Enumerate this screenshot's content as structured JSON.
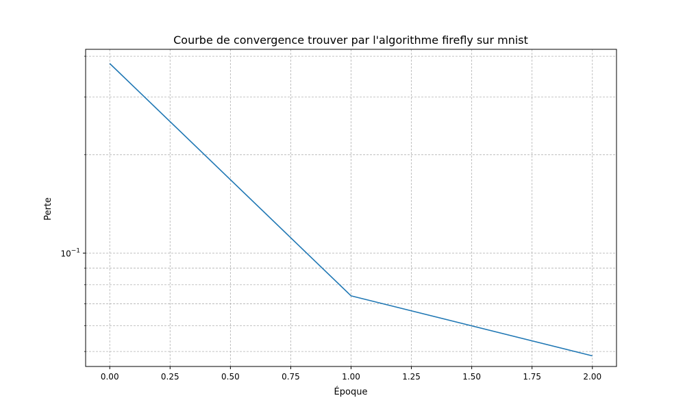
{
  "chart_data": {
    "type": "line",
    "title": "Courbe de convergence trouver par l'algorithme firefly sur mnist",
    "xlabel": "Époque",
    "ylabel": "Perte",
    "x": [
      0,
      1,
      2
    ],
    "series": [
      {
        "values": [
          0.38,
          0.074,
          0.0485
        ],
        "color": "#1f77b4"
      }
    ],
    "xlim": [
      -0.1,
      2.1
    ],
    "ylim": [
      0.045,
      0.42
    ],
    "yscale": "log",
    "xticks": [
      0.0,
      0.25,
      0.5,
      0.75,
      1.0,
      1.25,
      1.5,
      1.75,
      2.0
    ],
    "xtick_labels": [
      "0.00",
      "0.25",
      "0.50",
      "0.75",
      "1.00",
      "1.25",
      "1.50",
      "1.75",
      "2.00"
    ],
    "yticks_major": [
      0.1
    ],
    "ytick_labels": [
      "10"
    ],
    "ytick_exponent": "−1",
    "yticks_minor": [
      0.05,
      0.06,
      0.07,
      0.08,
      0.09,
      0.2,
      0.3,
      0.4
    ],
    "grid": true
  }
}
